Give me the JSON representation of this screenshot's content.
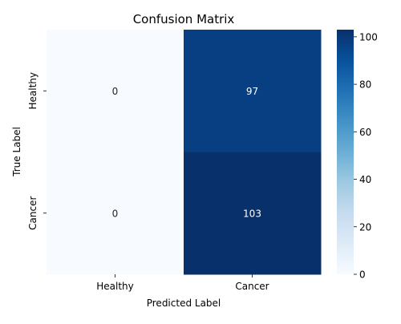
{
  "chart_data": {
    "type": "heatmap",
    "title": "Confusion Matrix",
    "xlabel": "Predicted Label",
    "ylabel": "True Label",
    "x_categories": [
      "Healthy",
      "Cancer"
    ],
    "y_categories": [
      "Healthy",
      "Cancer"
    ],
    "values": [
      [
        0,
        97
      ],
      [
        0,
        103
      ]
    ],
    "colormap": "Blues",
    "colorbar": {
      "range": [
        0,
        103
      ],
      "ticks": [
        0,
        20,
        40,
        60,
        80,
        100
      ]
    },
    "colors": {
      "low": "#f7fbff",
      "high": "#08306b"
    }
  }
}
